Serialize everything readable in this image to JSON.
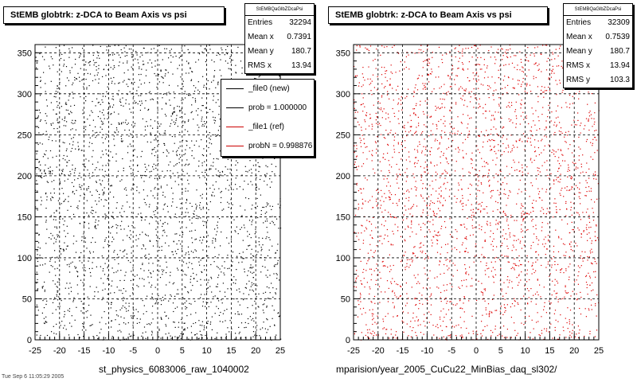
{
  "chart_data": [
    {
      "type": "scatter",
      "title": "StEMB globtrk: z-DCA to Beam Axis vs psi",
      "xlabel": "st_physics_6083006_raw_1040002",
      "ylabel": "",
      "xlim": [
        -25,
        25
      ],
      "ylim": [
        0,
        360
      ],
      "x_ticks": [
        "-25",
        "-20",
        "-15",
        "-10",
        "-5",
        "0",
        "5",
        "10",
        "15",
        "20",
        "25"
      ],
      "y_ticks": [
        "0",
        "50",
        "100",
        "150",
        "200",
        "250",
        "300",
        "350"
      ],
      "grid": true,
      "marker_color": "#000000",
      "stats": {
        "name": "StEMBQaGlbZDcaPsi",
        "rows": [
          {
            "label": "Entries",
            "value": "32294"
          },
          {
            "label": "Mean x",
            "value": "0.7391"
          },
          {
            "label": "Mean y",
            "value": "180.7"
          },
          {
            "label": "RMS x",
            "value": "13.94"
          }
        ]
      },
      "legend": {
        "placement": "right",
        "entries": [
          {
            "text": "_file0 (new)",
            "color": "#000000"
          },
          {
            "text": "prob = 1.000000",
            "color": "#000000"
          },
          {
            "text": "_file1 (ref)",
            "color": "#cc0000"
          },
          {
            "text": "probN = 0.998876",
            "color": "#cc0000"
          }
        ]
      }
    },
    {
      "type": "scatter",
      "title": "StEMB globtrk: z-DCA to Beam Axis vs psi",
      "xlabel": "mparision/year_2005_CuCu22_MinBias_daq_sl302/",
      "ylabel": "",
      "xlim": [
        -25,
        25
      ],
      "ylim": [
        0,
        360
      ],
      "x_ticks": [
        "-25",
        "-20",
        "-15",
        "-10",
        "-5",
        "0",
        "5",
        "10",
        "15",
        "20",
        "25"
      ],
      "y_ticks": [
        "0",
        "50",
        "100",
        "150",
        "200",
        "250",
        "300",
        "350"
      ],
      "grid": true,
      "marker_color": "#dd0000",
      "stats": {
        "name": "StEMBQaGlbZDcaPsi",
        "rows": [
          {
            "label": "Entries",
            "value": "32309"
          },
          {
            "label": "Mean x",
            "value": "0.7539"
          },
          {
            "label": "Mean y",
            "value": "180.7"
          },
          {
            "label": "RMS x",
            "value": "13.94"
          },
          {
            "label": "RMS y",
            "value": "103.3"
          }
        ]
      }
    }
  ],
  "footer": "Tue Sep  6 11:05:29 2005"
}
